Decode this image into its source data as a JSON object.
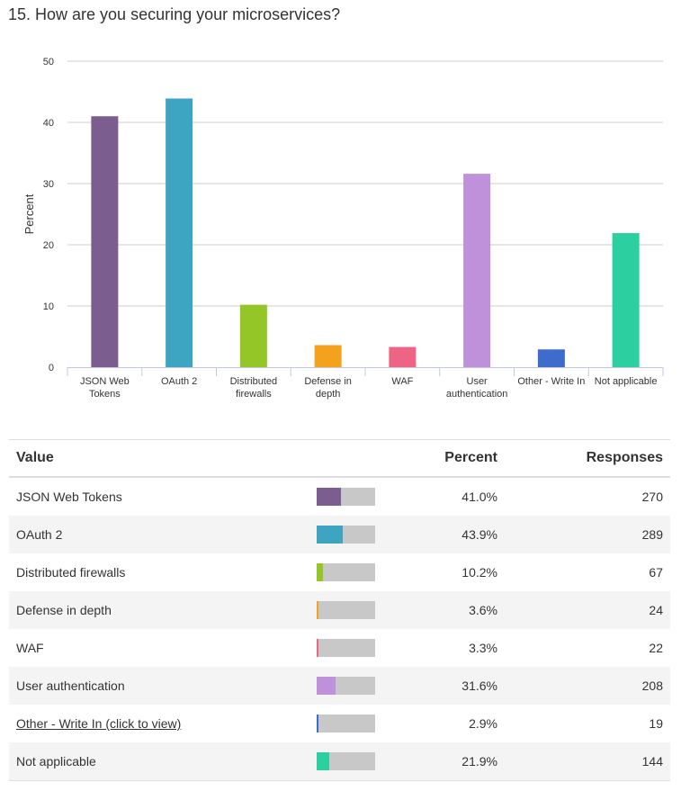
{
  "question_title": "15. How are you securing your microservices?",
  "chart_data": {
    "type": "bar",
    "title": "15. How are you securing your microservices?",
    "xlabel": "",
    "ylabel": "Percent",
    "ylim": [
      0,
      50
    ],
    "yticks": [
      "0",
      "10",
      "20",
      "30",
      "40",
      "50"
    ],
    "grid": true,
    "categories": [
      [
        "JSON Web",
        "Tokens"
      ],
      [
        "OAuth 2"
      ],
      [
        "Distributed",
        "firewalls"
      ],
      [
        "Defense in",
        "depth"
      ],
      [
        "WAF"
      ],
      [
        "User",
        "authentication"
      ],
      [
        "Other - Write In"
      ],
      [
        "Not applicable"
      ]
    ],
    "values": [
      41.0,
      43.9,
      10.2,
      3.6,
      3.3,
      31.6,
      2.9,
      21.9
    ],
    "colors": [
      "#7b5e8f",
      "#3da4c1",
      "#95c627",
      "#f4a21d",
      "#ee6485",
      "#bf91da",
      "#3d6ccd",
      "#2bcfa0"
    ]
  },
  "table": {
    "headers": {
      "value": "Value",
      "percent": "Percent",
      "responses": "Responses"
    },
    "rows": [
      {
        "label": "JSON Web Tokens",
        "percent": "41.0%",
        "responses": "270",
        "link": false
      },
      {
        "label": "OAuth 2",
        "percent": "43.9%",
        "responses": "289",
        "link": false
      },
      {
        "label": "Distributed firewalls",
        "percent": "10.2%",
        "responses": "67",
        "link": false
      },
      {
        "label": "Defense in depth",
        "percent": "3.6%",
        "responses": "24",
        "link": false
      },
      {
        "label": "WAF",
        "percent": "3.3%",
        "responses": "22",
        "link": false
      },
      {
        "label": "User authentication",
        "percent": "31.6%",
        "responses": "208",
        "link": false
      },
      {
        "label": "Other - Write In (click to view)",
        "percent": "2.9%",
        "responses": "19",
        "link": true
      },
      {
        "label": "Not applicable",
        "percent": "21.9%",
        "responses": "144",
        "link": false
      }
    ]
  }
}
